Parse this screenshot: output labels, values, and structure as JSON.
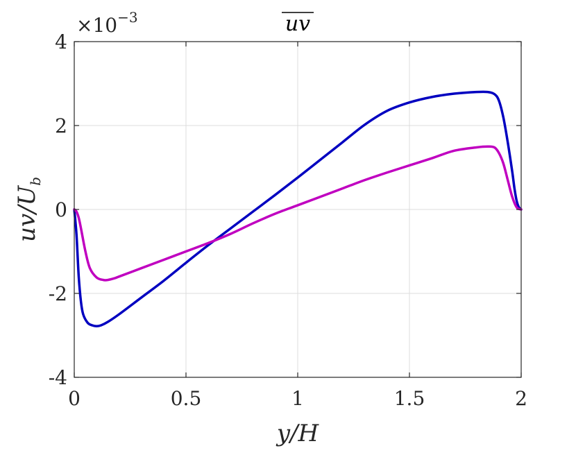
{
  "chart_data": {
    "type": "line",
    "title": "uv",
    "xlabel": "y/H",
    "ylabel_main": "uv/U",
    "ylabel_sub": "b",
    "xlim": [
      0,
      2
    ],
    "ylim": [
      -4,
      4
    ],
    "y_multiplier": {
      "base": "×10",
      "exponent": "−3"
    },
    "grid": true,
    "xticks": [
      0,
      0.5,
      1,
      1.5,
      2
    ],
    "xtick_labels": [
      "0",
      "0.5",
      "1",
      "1.5",
      "2"
    ],
    "yticks": [
      -4,
      -2,
      0,
      2,
      4
    ],
    "ytick_labels": [
      "-4",
      "-2",
      "0",
      "2",
      "4"
    ],
    "series": [
      {
        "color": "#0000c0",
        "x": [
          0,
          0.01,
          0.02,
          0.03,
          0.04,
          0.06,
          0.08,
          0.1,
          0.12,
          0.15,
          0.2,
          0.3,
          0.4,
          0.5,
          0.6,
          0.7,
          0.8,
          0.9,
          1.0,
          1.1,
          1.2,
          1.3,
          1.4,
          1.5,
          1.6,
          1.7,
          1.8,
          1.85,
          1.88,
          1.9,
          1.92,
          1.94,
          1.96,
          1.97,
          1.98,
          1.99,
          2.0
        ],
        "y": [
          0,
          -0.6,
          -1.6,
          -2.2,
          -2.5,
          -2.7,
          -2.76,
          -2.78,
          -2.76,
          -2.68,
          -2.5,
          -2.1,
          -1.7,
          -1.27,
          -0.85,
          -0.45,
          -0.05,
          0.35,
          0.76,
          1.18,
          1.6,
          2.02,
          2.35,
          2.55,
          2.68,
          2.76,
          2.8,
          2.8,
          2.75,
          2.6,
          2.2,
          1.6,
          0.9,
          0.5,
          0.2,
          0.05,
          0
        ]
      },
      {
        "color": "#c000c0",
        "x": [
          0,
          0.01,
          0.02,
          0.03,
          0.05,
          0.07,
          0.1,
          0.13,
          0.15,
          0.18,
          0.2,
          0.3,
          0.4,
          0.5,
          0.6,
          0.7,
          0.8,
          0.9,
          1.0,
          1.1,
          1.2,
          1.3,
          1.4,
          1.5,
          1.6,
          1.7,
          1.8,
          1.85,
          1.88,
          1.9,
          1.92,
          1.94,
          1.96,
          1.98,
          2.0
        ],
        "y": [
          0,
          -0.05,
          -0.2,
          -0.45,
          -1.0,
          -1.4,
          -1.62,
          -1.68,
          -1.68,
          -1.64,
          -1.6,
          -1.4,
          -1.2,
          -1.0,
          -0.8,
          -0.58,
          -0.33,
          -0.1,
          0.1,
          0.3,
          0.5,
          0.7,
          0.88,
          1.05,
          1.22,
          1.4,
          1.48,
          1.5,
          1.48,
          1.35,
          1.1,
          0.7,
          0.3,
          0.05,
          0
        ]
      }
    ]
  }
}
